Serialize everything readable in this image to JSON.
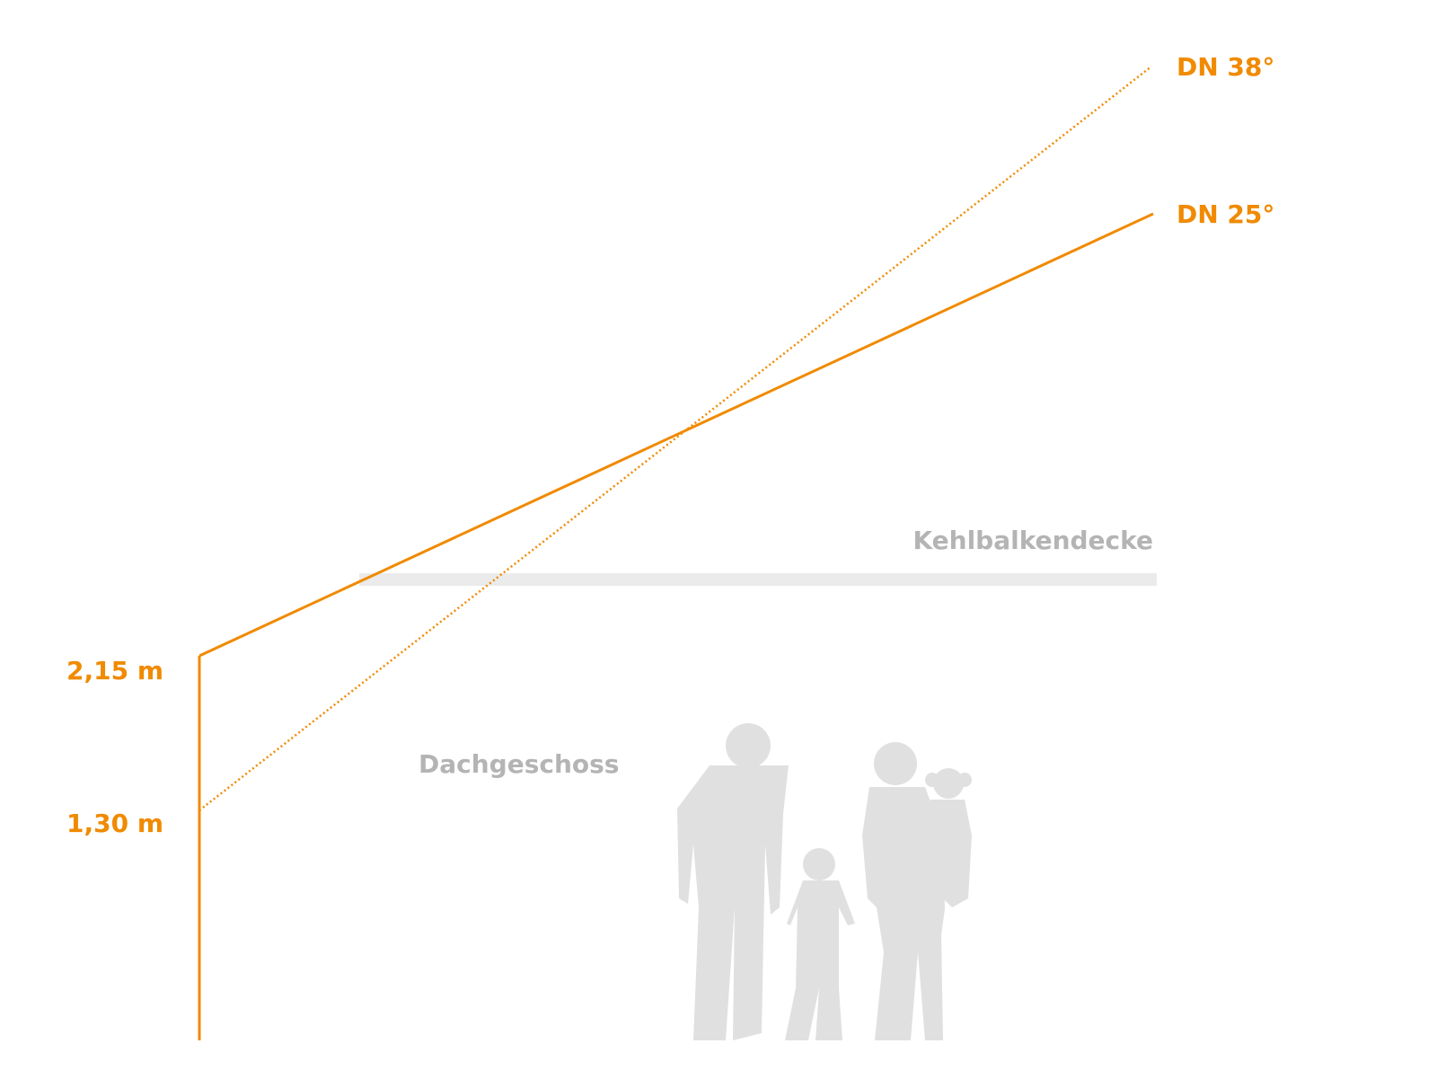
{
  "roof_lines": [
    {
      "label": "DN 38°"
    },
    {
      "label": "DN 25°"
    }
  ],
  "ceiling": {
    "label": "Kehlbalkendecke"
  },
  "room": {
    "label": "Dachgeschoss"
  },
  "heights": [
    {
      "label": "2,15 m"
    },
    {
      "label": "1,30 m"
    }
  ]
}
